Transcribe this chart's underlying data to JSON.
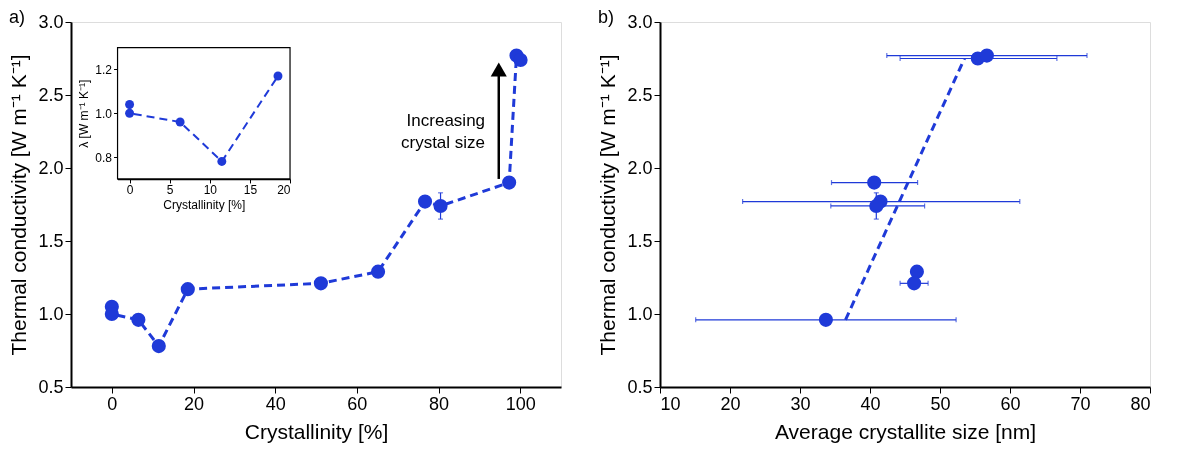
{
  "chart_data": [
    {
      "type": "line",
      "title": "a)",
      "xlabel": "Crystallinity [%]",
      "ylabel": "Thermal conductivity [W m⁻¹ K⁻¹]",
      "xlim": [
        -10,
        110
      ],
      "xticks": [
        0,
        20,
        40,
        60,
        80,
        100
      ],
      "ylim": [
        0.5,
        3.0
      ],
      "yticks": [
        0.5,
        {
          "value": 1,
          "label": "1.0"
        },
        1.5,
        {
          "value": 2,
          "label": "2.0"
        },
        2.5,
        {
          "value": 3,
          "label": "3.0"
        }
      ],
      "grid": false,
      "marker": "circle",
      "line_style": "dashed",
      "annotations": [
        "Increasing crystal size"
      ],
      "series": [
        {
          "color": "#1f3ad8",
          "x": [
            0,
            0,
            6.5,
            11.5,
            18.6,
            51.2,
            65.2,
            76.7,
            80.5,
            97.3,
            99.1,
            100.1
          ],
          "values": [
            1.05,
            1.0,
            0.96,
            0.78,
            1.17,
            1.21,
            1.29,
            1.77,
            1.74,
            1.9,
            2.77,
            2.74
          ],
          "errors": [
            null,
            null,
            null,
            null,
            null,
            null,
            null,
            null,
            [
              1.65,
              1.83
            ],
            null,
            null,
            null
          ]
        }
      ]
    },
    {
      "type": "line",
      "xlabel": "Crystallinity [%]",
      "ylabel": "λ [W m⁻¹ K⁻¹]",
      "xlim": [
        -1.5,
        20
      ],
      "xticks": [
        0,
        5,
        10,
        15,
        20
      ],
      "ylim": [
        0.7,
        1.3
      ],
      "yticks": [
        0.8,
        {
          "value": 1,
          "label": "1.0"
        },
        1.2
      ],
      "grid": false,
      "marker": "circle",
      "line_style": "dashed",
      "series": [
        {
          "color": "#1f3ad8",
          "x": [
            0,
            0,
            6.3,
            11.5,
            18.5
          ],
          "values": [
            1.04,
            1.0,
            0.96,
            0.78,
            1.17
          ]
        }
      ]
    },
    {
      "type": "scatter",
      "title": "b)",
      "xlabel": "Average crystallite size [nm]",
      "ylabel": "Thermal conductivity [W m⁻¹ K⁻¹]",
      "xlim": [
        10,
        80
      ],
      "xticks": [
        10,
        20,
        30,
        40,
        50,
        60,
        70,
        80
      ],
      "ylim": [
        0.5,
        3.0
      ],
      "yticks": [
        0.5,
        {
          "value": 1,
          "label": "1.0"
        },
        1.5,
        {
          "value": 2,
          "label": "2.0"
        },
        2.5,
        {
          "value": 3,
          "label": "3.0"
        }
      ],
      "grid": false,
      "marker": "circle",
      "series": [
        {
          "color": "#1f3ad8",
          "x": [
            33.7,
            40.6,
            41.5,
            40.9,
            46.7,
            46.3,
            55.4,
            56.7
          ],
          "values": [
            0.96,
            1.9,
            1.77,
            1.74,
            1.29,
            1.21,
            2.75,
            2.77
          ],
          "errors": [
            null,
            null,
            null,
            [
              1.65,
              1.83
            ],
            null,
            null,
            null,
            null
          ],
          "xerrors": [
            [
              15.1,
              52.3
            ],
            [
              34.5,
              46.8
            ],
            [
              21.8,
              61.4
            ],
            [
              34.4,
              47.8
            ],
            null,
            [
              44.3,
              48.3
            ],
            [
              44.3,
              66.7
            ],
            [
              42.4,
              71.0
            ]
          ]
        },
        {
          "type": "line",
          "color": "#1f3ad8",
          "marker": "none",
          "line_style": "dashed",
          "x": [
            36.5,
            53.5
          ],
          "values": [
            0.96,
            2.75
          ]
        }
      ]
    }
  ]
}
